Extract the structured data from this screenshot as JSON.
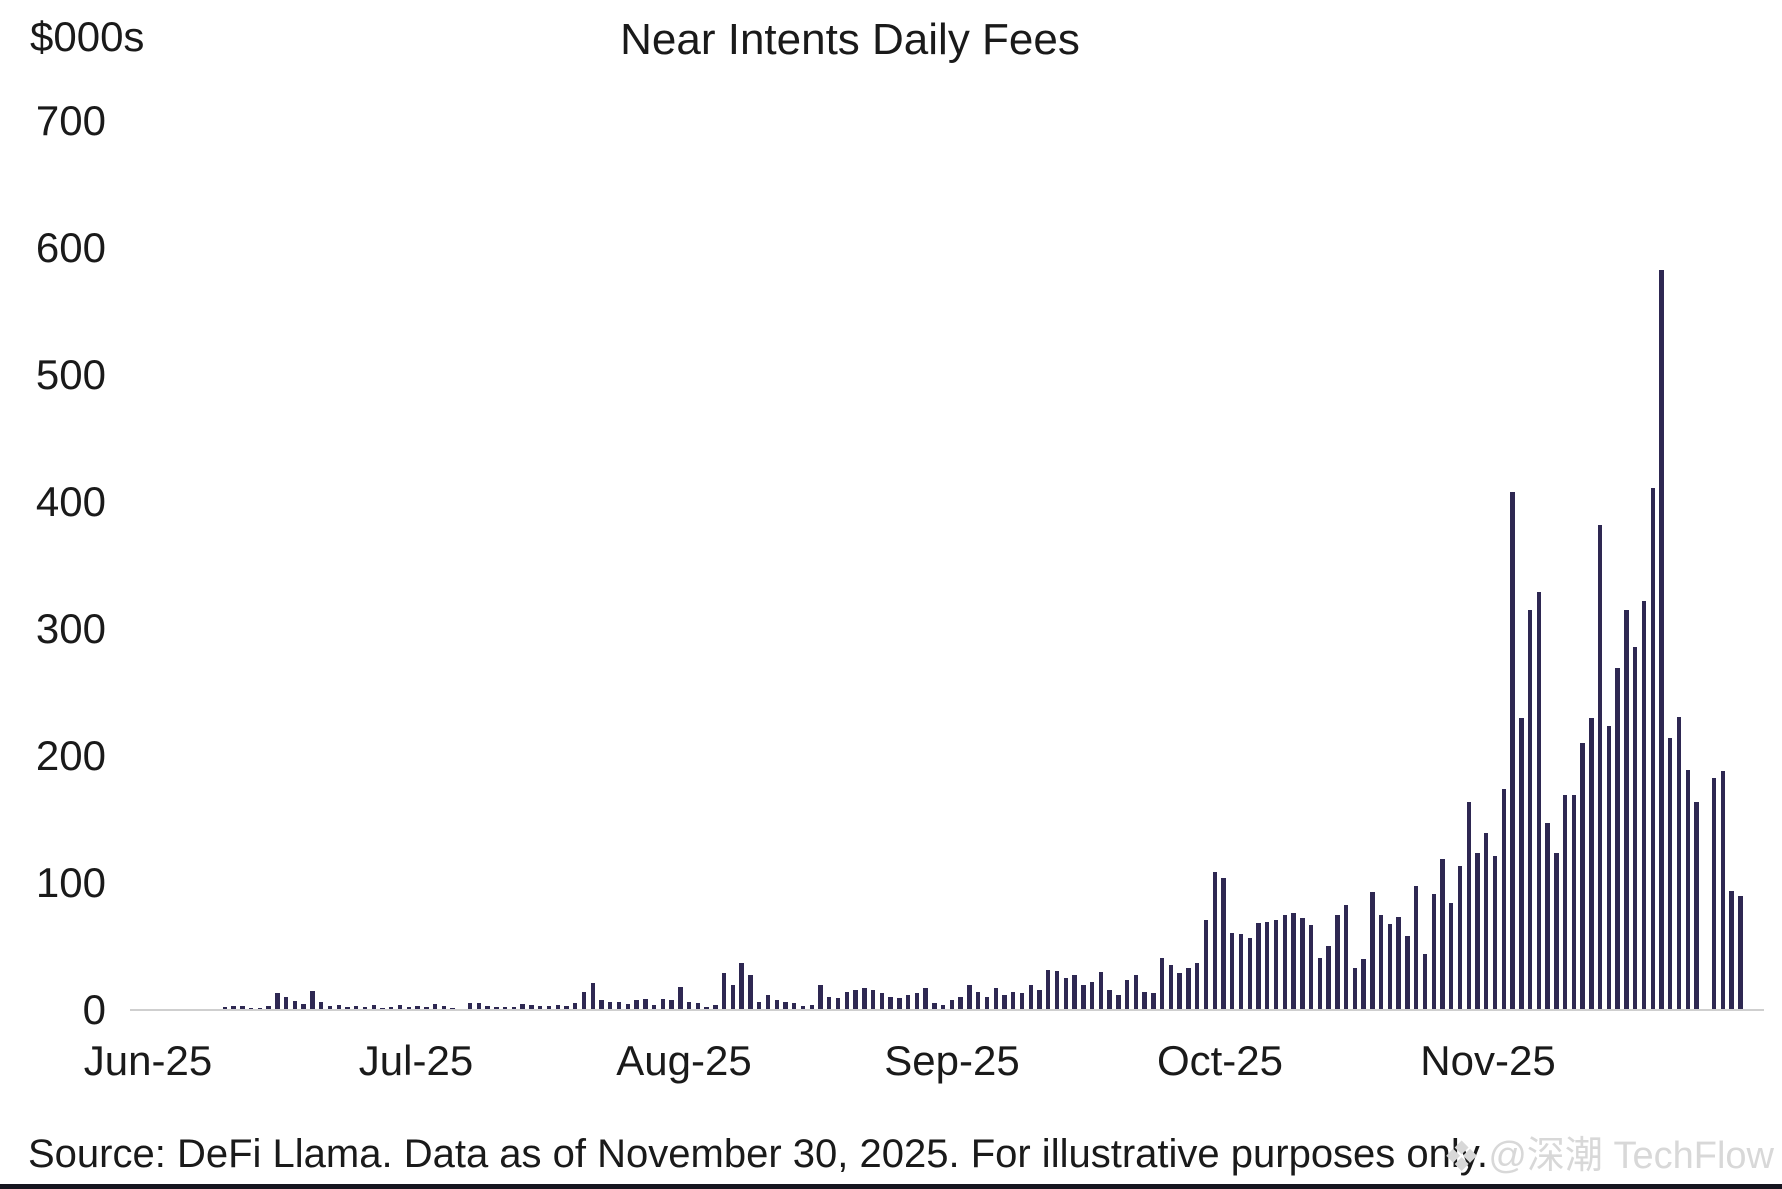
{
  "header": {
    "unit_label": "$000s",
    "title": "Near Intents Daily Fees"
  },
  "footer": {
    "source_note": "Source: DeFi Llama. Data as of November 30, 2025. For illustrative purposes only.",
    "watermark_icon": "❖",
    "watermark_text": "@深潮 TechFlow"
  },
  "chart_data": {
    "type": "bar",
    "title": "Near Intents Daily Fees",
    "ylabel": "$000s",
    "xlabel": "",
    "ylim": [
      0,
      700
    ],
    "yticks": [
      0,
      100,
      200,
      300,
      400,
      500,
      600,
      700
    ],
    "xticks": [
      "Jun-25",
      "Jul-25",
      "Aug-25",
      "Sep-25",
      "Oct-25",
      "Nov-25"
    ],
    "grid": false,
    "legend": "none",
    "bar_color": "#2e2852",
    "frequency": "daily",
    "series_daily": [
      {
        "month": "Jun-25",
        "values": [
          0.2,
          0.2,
          0.3,
          0.3,
          0.4,
          0.5,
          0.5,
          0.6,
          0.8,
          2,
          3,
          3,
          1.5,
          1.3,
          3.5,
          13,
          10,
          7.3,
          4.7,
          15,
          6.5,
          3,
          4,
          2.6,
          3,
          2,
          4,
          1.3,
          2.6,
          3.9
        ]
      },
      {
        "month": "Jul-25",
        "values": [
          2.6,
          3.1,
          2.1,
          4.7,
          3.1,
          1.3,
          0.8,
          5.2,
          5.2,
          3.1,
          2.6,
          2.6,
          2.1,
          4.7,
          3.9,
          3.1,
          3.1,
          3.9,
          3.1,
          5.2,
          14.4,
          21,
          7.9,
          6.6,
          6.6,
          5,
          8,
          9,
          4,
          9,
          8
        ]
      },
      {
        "month": "Aug-25",
        "values": [
          18.4,
          6.6,
          5.2,
          2.6,
          3.9,
          28.9,
          19.7,
          36.7,
          27.6,
          6.6,
          11.8,
          7.9,
          6.6,
          5.2,
          3.1,
          3.9,
          19.7,
          10.5,
          9.2,
          14.4,
          15.7,
          17.1,
          15.7,
          13.1,
          10.5,
          9.2,
          11.8,
          13.1,
          17.1,
          5.2,
          3.9
        ]
      },
      {
        "month": "Sep-25",
        "values": [
          8,
          10.5,
          19.7,
          14.4,
          10.5,
          17.1,
          11.8,
          14.4,
          13.1,
          19.7,
          15.7,
          31.5,
          31,
          25,
          27.6,
          19.7,
          22.3,
          30.2,
          15.7,
          11.8,
          23.6,
          27.6,
          14.4,
          13.1,
          40.7,
          35.4,
          28.9,
          32.8,
          36.7,
          70.9
        ]
      },
      {
        "month": "Oct-25",
        "values": [
          109,
          104,
          60.4,
          59.8,
          56.4,
          68.2,
          69.6,
          70.9,
          74.8,
          76.1,
          72.2,
          66.9,
          40.7,
          50.7,
          75,
          83,
          33,
          40,
          93,
          75,
          68,
          73,
          58,
          98,
          44,
          91,
          119,
          84,
          113,
          164,
          124
        ]
      },
      {
        "month": "Nov-25",
        "values": [
          139,
          121,
          174,
          408,
          230,
          315,
          329,
          147,
          124,
          169,
          169,
          210,
          230,
          382,
          224,
          269,
          315,
          286,
          322,
          411,
          583,
          214,
          231,
          189,
          164,
          0,
          183,
          188,
          94,
          90
        ]
      }
    ]
  }
}
